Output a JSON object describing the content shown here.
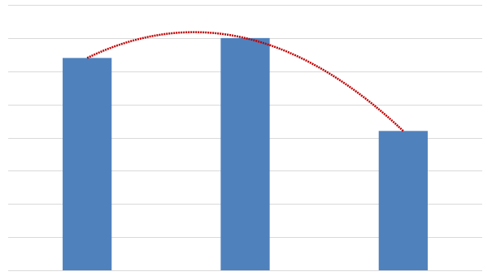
{
  "chart_data": {
    "type": "bar",
    "categories": [
      null,
      null,
      null
    ],
    "values": [
      6.4,
      7.0,
      4.2
    ],
    "color": "#4f81bd",
    "ylim": [
      0,
      8
    ],
    "yticks": [
      0,
      1,
      2,
      3,
      4,
      5,
      6,
      7,
      8
    ],
    "grid": true,
    "trendline": {
      "type": "polynomial",
      "order": 2,
      "color": "#c00000"
    }
  }
}
